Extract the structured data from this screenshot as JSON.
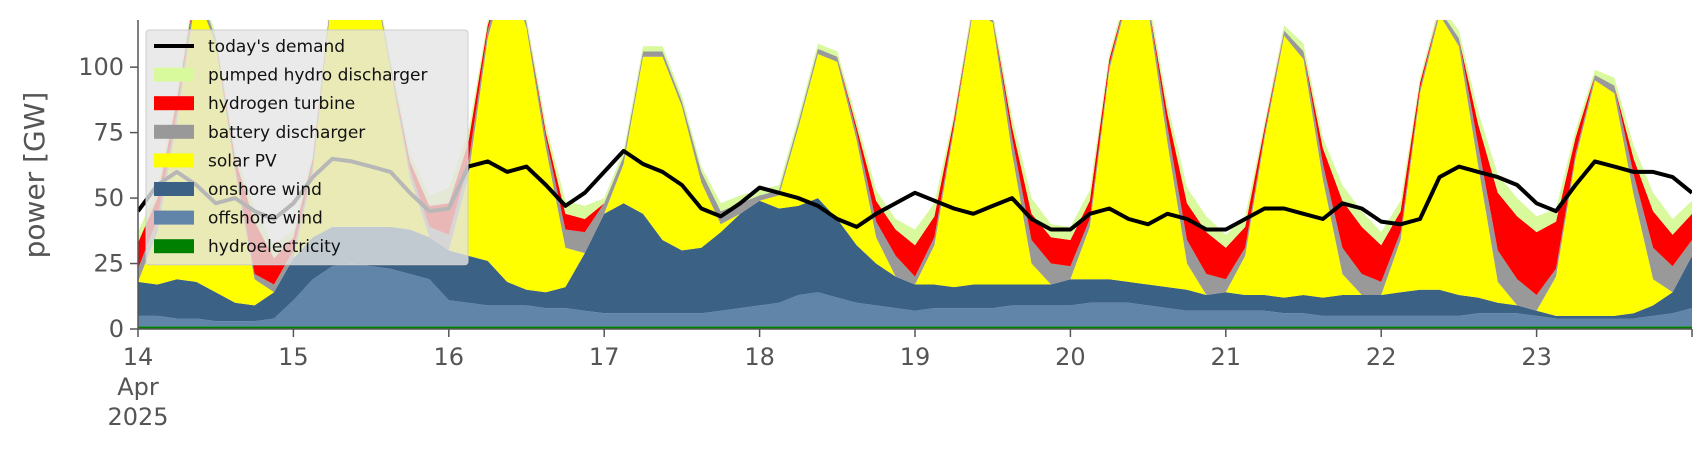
{
  "chart_data": {
    "type": "area",
    "title": "",
    "xlabel": "",
    "ylabel": "power [GW]",
    "x_start": "2025-04-14",
    "x_end": "2025-04-24",
    "ylim": [
      0,
      118
    ],
    "yticks": [
      0,
      25,
      50,
      75,
      100
    ],
    "ytick_labels": [
      "0",
      "25",
      "50",
      "75",
      "100"
    ],
    "xtick_labels": [
      "14",
      "15",
      "16",
      "17",
      "18",
      "19",
      "20",
      "21",
      "22",
      "23"
    ],
    "xtick_sub": [
      "Apr",
      "2025"
    ],
    "legend_position": "upper-left",
    "grid": false,
    "x": [
      "2025-04-14 00:00",
      "2025-04-14 03:00",
      "2025-04-14 06:00",
      "2025-04-14 09:00",
      "2025-04-14 12:00",
      "2025-04-14 15:00",
      "2025-04-14 18:00",
      "2025-04-14 21:00",
      "2025-04-15 00:00",
      "2025-04-15 03:00",
      "2025-04-15 06:00",
      "2025-04-15 09:00",
      "2025-04-15 12:00",
      "2025-04-15 15:00",
      "2025-04-15 18:00",
      "2025-04-15 21:00",
      "2025-04-16 00:00",
      "2025-04-16 03:00",
      "2025-04-16 06:00",
      "2025-04-16 09:00",
      "2025-04-16 12:00",
      "2025-04-16 15:00",
      "2025-04-16 18:00",
      "2025-04-16 21:00",
      "2025-04-17 00:00",
      "2025-04-17 03:00",
      "2025-04-17 06:00",
      "2025-04-17 09:00",
      "2025-04-17 12:00",
      "2025-04-17 15:00",
      "2025-04-17 18:00",
      "2025-04-17 21:00",
      "2025-04-18 00:00",
      "2025-04-18 03:00",
      "2025-04-18 06:00",
      "2025-04-18 09:00",
      "2025-04-18 12:00",
      "2025-04-18 15:00",
      "2025-04-18 18:00",
      "2025-04-18 21:00",
      "2025-04-19 00:00",
      "2025-04-19 03:00",
      "2025-04-19 06:00",
      "2025-04-19 09:00",
      "2025-04-19 12:00",
      "2025-04-19 15:00",
      "2025-04-19 18:00",
      "2025-04-19 21:00",
      "2025-04-20 00:00",
      "2025-04-20 03:00",
      "2025-04-20 06:00",
      "2025-04-20 09:00",
      "2025-04-20 12:00",
      "2025-04-20 15:00",
      "2025-04-20 18:00",
      "2025-04-20 21:00",
      "2025-04-21 00:00",
      "2025-04-21 03:00",
      "2025-04-21 06:00",
      "2025-04-21 09:00",
      "2025-04-21 12:00",
      "2025-04-21 15:00",
      "2025-04-21 18:00",
      "2025-04-21 21:00",
      "2025-04-22 00:00",
      "2025-04-22 03:00",
      "2025-04-22 06:00",
      "2025-04-22 09:00",
      "2025-04-22 12:00",
      "2025-04-22 15:00",
      "2025-04-22 18:00",
      "2025-04-22 21:00",
      "2025-04-23 00:00",
      "2025-04-23 03:00",
      "2025-04-23 06:00",
      "2025-04-23 09:00",
      "2025-04-23 12:00",
      "2025-04-23 15:00",
      "2025-04-23 18:00",
      "2025-04-23 21:00",
      "2025-04-24 00:00"
    ],
    "series": [
      {
        "name": "hydroelectricity",
        "color": "#008000",
        "values": [
          1,
          1,
          1,
          1,
          1,
          1,
          1,
          1,
          1,
          1,
          1,
          1,
          1,
          1,
          1,
          1,
          1,
          1,
          1,
          1,
          1,
          1,
          1,
          1,
          1,
          1,
          1,
          1,
          1,
          1,
          1,
          1,
          1,
          1,
          1,
          1,
          1,
          1,
          1,
          1,
          1,
          1,
          1,
          1,
          1,
          1,
          1,
          1,
          1,
          1,
          1,
          1,
          1,
          1,
          1,
          1,
          1,
          1,
          1,
          1,
          1,
          1,
          1,
          1,
          1,
          1,
          1,
          1,
          1,
          1,
          1,
          1,
          1,
          1,
          1,
          1,
          1,
          1,
          1,
          1,
          1
        ]
      },
      {
        "name": "offshore wind",
        "color": "#6085a8",
        "values": [
          4,
          4,
          3,
          3,
          2,
          2,
          2,
          3,
          10,
          18,
          23,
          24,
          23,
          22,
          20,
          18,
          10,
          9,
          8,
          8,
          8,
          7,
          7,
          6,
          5,
          5,
          5,
          5,
          5,
          5,
          6,
          7,
          8,
          9,
          12,
          13,
          11,
          9,
          8,
          7,
          6,
          7,
          7,
          7,
          7,
          8,
          8,
          8,
          8,
          9,
          9,
          9,
          8,
          7,
          6,
          6,
          6,
          6,
          6,
          5,
          5,
          4,
          4,
          4,
          4,
          4,
          4,
          4,
          4,
          5,
          5,
          5,
          4,
          3,
          3,
          3,
          3,
          3,
          4,
          5,
          7
        ]
      },
      {
        "name": "onshore wind",
        "color": "#3b6184",
        "values": [
          13,
          12,
          15,
          14,
          11,
          7,
          6,
          10,
          16,
          16,
          15,
          14,
          15,
          16,
          17,
          16,
          19,
          18,
          17,
          9,
          6,
          6,
          8,
          22,
          38,
          42,
          38,
          28,
          24,
          25,
          30,
          36,
          40,
          36,
          34,
          36,
          30,
          22,
          16,
          12,
          10,
          9,
          8,
          9,
          9,
          8,
          8,
          8,
          10,
          9,
          9,
          8,
          8,
          8,
          8,
          6,
          7,
          6,
          6,
          6,
          7,
          7,
          8,
          8,
          8,
          9,
          10,
          10,
          8,
          6,
          4,
          3,
          2,
          1,
          1,
          1,
          1,
          2,
          4,
          8,
          20
        ]
      },
      {
        "name": "solar PV",
        "color": "#ffff00",
        "values": [
          0,
          20,
          60,
          110,
          95,
          50,
          10,
          0,
          0,
          25,
          90,
          115,
          100,
          60,
          20,
          0,
          0,
          30,
          85,
          120,
          100,
          55,
          15,
          0,
          0,
          15,
          60,
          70,
          55,
          25,
          3,
          0,
          0,
          5,
          30,
          55,
          60,
          40,
          10,
          0,
          0,
          15,
          60,
          105,
          100,
          50,
          8,
          0,
          0,
          20,
          80,
          110,
          105,
          55,
          10,
          0,
          0,
          15,
          60,
          100,
          90,
          45,
          8,
          0,
          0,
          20,
          75,
          105,
          95,
          50,
          8,
          0,
          0,
          15,
          60,
          90,
          85,
          45,
          10,
          0,
          0
        ]
      },
      {
        "name": "battery discharger",
        "color": "#999999",
        "values": [
          5,
          5,
          4,
          4,
          2,
          2,
          2,
          3,
          3,
          3,
          2,
          2,
          2,
          2,
          3,
          4,
          6,
          5,
          3,
          2,
          2,
          4,
          7,
          8,
          4,
          3,
          2,
          2,
          2,
          4,
          5,
          4,
          2,
          2,
          2,
          2,
          2,
          3,
          6,
          8,
          3,
          3,
          2,
          2,
          2,
          6,
          9,
          8,
          5,
          3,
          2,
          2,
          3,
          6,
          9,
          8,
          5,
          3,
          2,
          2,
          3,
          6,
          10,
          8,
          5,
          3,
          2,
          2,
          3,
          8,
          12,
          10,
          6,
          3,
          2,
          2,
          3,
          8,
          12,
          10,
          6
        ]
      },
      {
        "name": "hydrogen turbine",
        "color": "#ff0000",
        "values": [
          10,
          8,
          4,
          0,
          0,
          3,
          20,
          10,
          5,
          2,
          0,
          0,
          0,
          0,
          3,
          8,
          12,
          8,
          2,
          0,
          0,
          2,
          6,
          5,
          0,
          0,
          0,
          0,
          0,
          0,
          0,
          0,
          0,
          0,
          0,
          0,
          0,
          2,
          8,
          10,
          12,
          8,
          2,
          0,
          0,
          4,
          10,
          10,
          10,
          7,
          2,
          0,
          0,
          5,
          14,
          16,
          12,
          8,
          2,
          0,
          0,
          6,
          18,
          18,
          14,
          8,
          2,
          0,
          0,
          8,
          22,
          24,
          24,
          18,
          6,
          0,
          0,
          6,
          14,
          12,
          10
        ]
      },
      {
        "name": "pumped hydro discharger",
        "color": "#d9f99d",
        "values": [
          4,
          4,
          3,
          2,
          2,
          3,
          5,
          5,
          3,
          2,
          2,
          2,
          2,
          2,
          3,
          4,
          6,
          4,
          2,
          2,
          2,
          3,
          5,
          5,
          2,
          2,
          2,
          2,
          2,
          2,
          3,
          3,
          2,
          2,
          2,
          2,
          2,
          3,
          4,
          4,
          6,
          5,
          2,
          2,
          2,
          4,
          6,
          5,
          5,
          4,
          2,
          2,
          3,
          4,
          6,
          6,
          5,
          4,
          2,
          2,
          3,
          4,
          6,
          6,
          5,
          4,
          2,
          2,
          3,
          5,
          7,
          7,
          6,
          5,
          3,
          2,
          3,
          5,
          7,
          6,
          5
        ]
      }
    ],
    "demand": {
      "name": "today's demand",
      "color": "#000000",
      "values": [
        45,
        55,
        60,
        55,
        48,
        50,
        45,
        42,
        48,
        58,
        65,
        64,
        62,
        60,
        52,
        45,
        46,
        62,
        64,
        60,
        62,
        55,
        47,
        52,
        60,
        68,
        63,
        60,
        55,
        46,
        43,
        48,
        54,
        52,
        50,
        47,
        42,
        39,
        44,
        48,
        52,
        49,
        46,
        44,
        47,
        50,
        42,
        38,
        38,
        44,
        46,
        42,
        40,
        44,
        42,
        38,
        38,
        42,
        46,
        46,
        44,
        42,
        48,
        46,
        41,
        40,
        42,
        58,
        62,
        60,
        58,
        55,
        48,
        45,
        55,
        64,
        62,
        60,
        60,
        58,
        52
      ]
    }
  },
  "legend": [
    {
      "label": "today's demand",
      "kind": "line",
      "color": "#000000"
    },
    {
      "label": "pumped hydro discharger",
      "kind": "patch",
      "color": "#d9f99d"
    },
    {
      "label": "hydrogen turbine",
      "kind": "patch",
      "color": "#ff0000"
    },
    {
      "label": "battery discharger",
      "kind": "patch",
      "color": "#999999"
    },
    {
      "label": "solar PV",
      "kind": "patch",
      "color": "#ffff00"
    },
    {
      "label": "onshore wind",
      "kind": "patch",
      "color": "#3b6184"
    },
    {
      "label": "offshore wind",
      "kind": "patch",
      "color": "#6085a8"
    },
    {
      "label": "hydroelectricity",
      "kind": "patch",
      "color": "#008000"
    }
  ]
}
